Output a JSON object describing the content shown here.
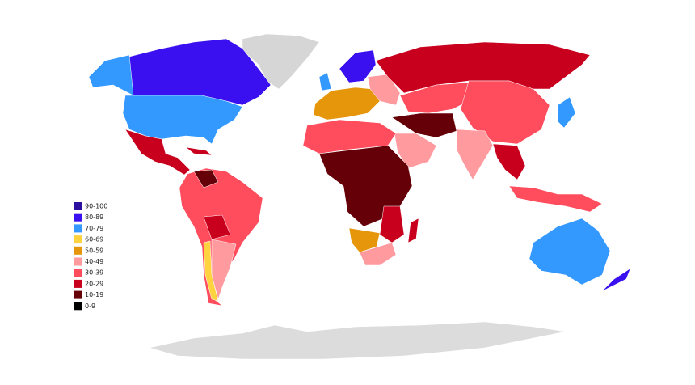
{
  "legend": {
    "items": [
      {
        "label": "90-100",
        "color": "#2b0f9e"
      },
      {
        "label": "80-89",
        "color": "#3a10f0"
      },
      {
        "label": "70-79",
        "color": "#3399ff"
      },
      {
        "label": "60-69",
        "color": "#ffd23f"
      },
      {
        "label": "50-59",
        "color": "#e5960a"
      },
      {
        "label": "40-49",
        "color": "#ff9a9e"
      },
      {
        "label": "30-39",
        "color": "#ff4d5e"
      },
      {
        "label": "20-29",
        "color": "#c8001e"
      },
      {
        "label": "10-19",
        "color": "#650008"
      },
      {
        "label": "0-9",
        "color": "#000000"
      }
    ]
  }
}
